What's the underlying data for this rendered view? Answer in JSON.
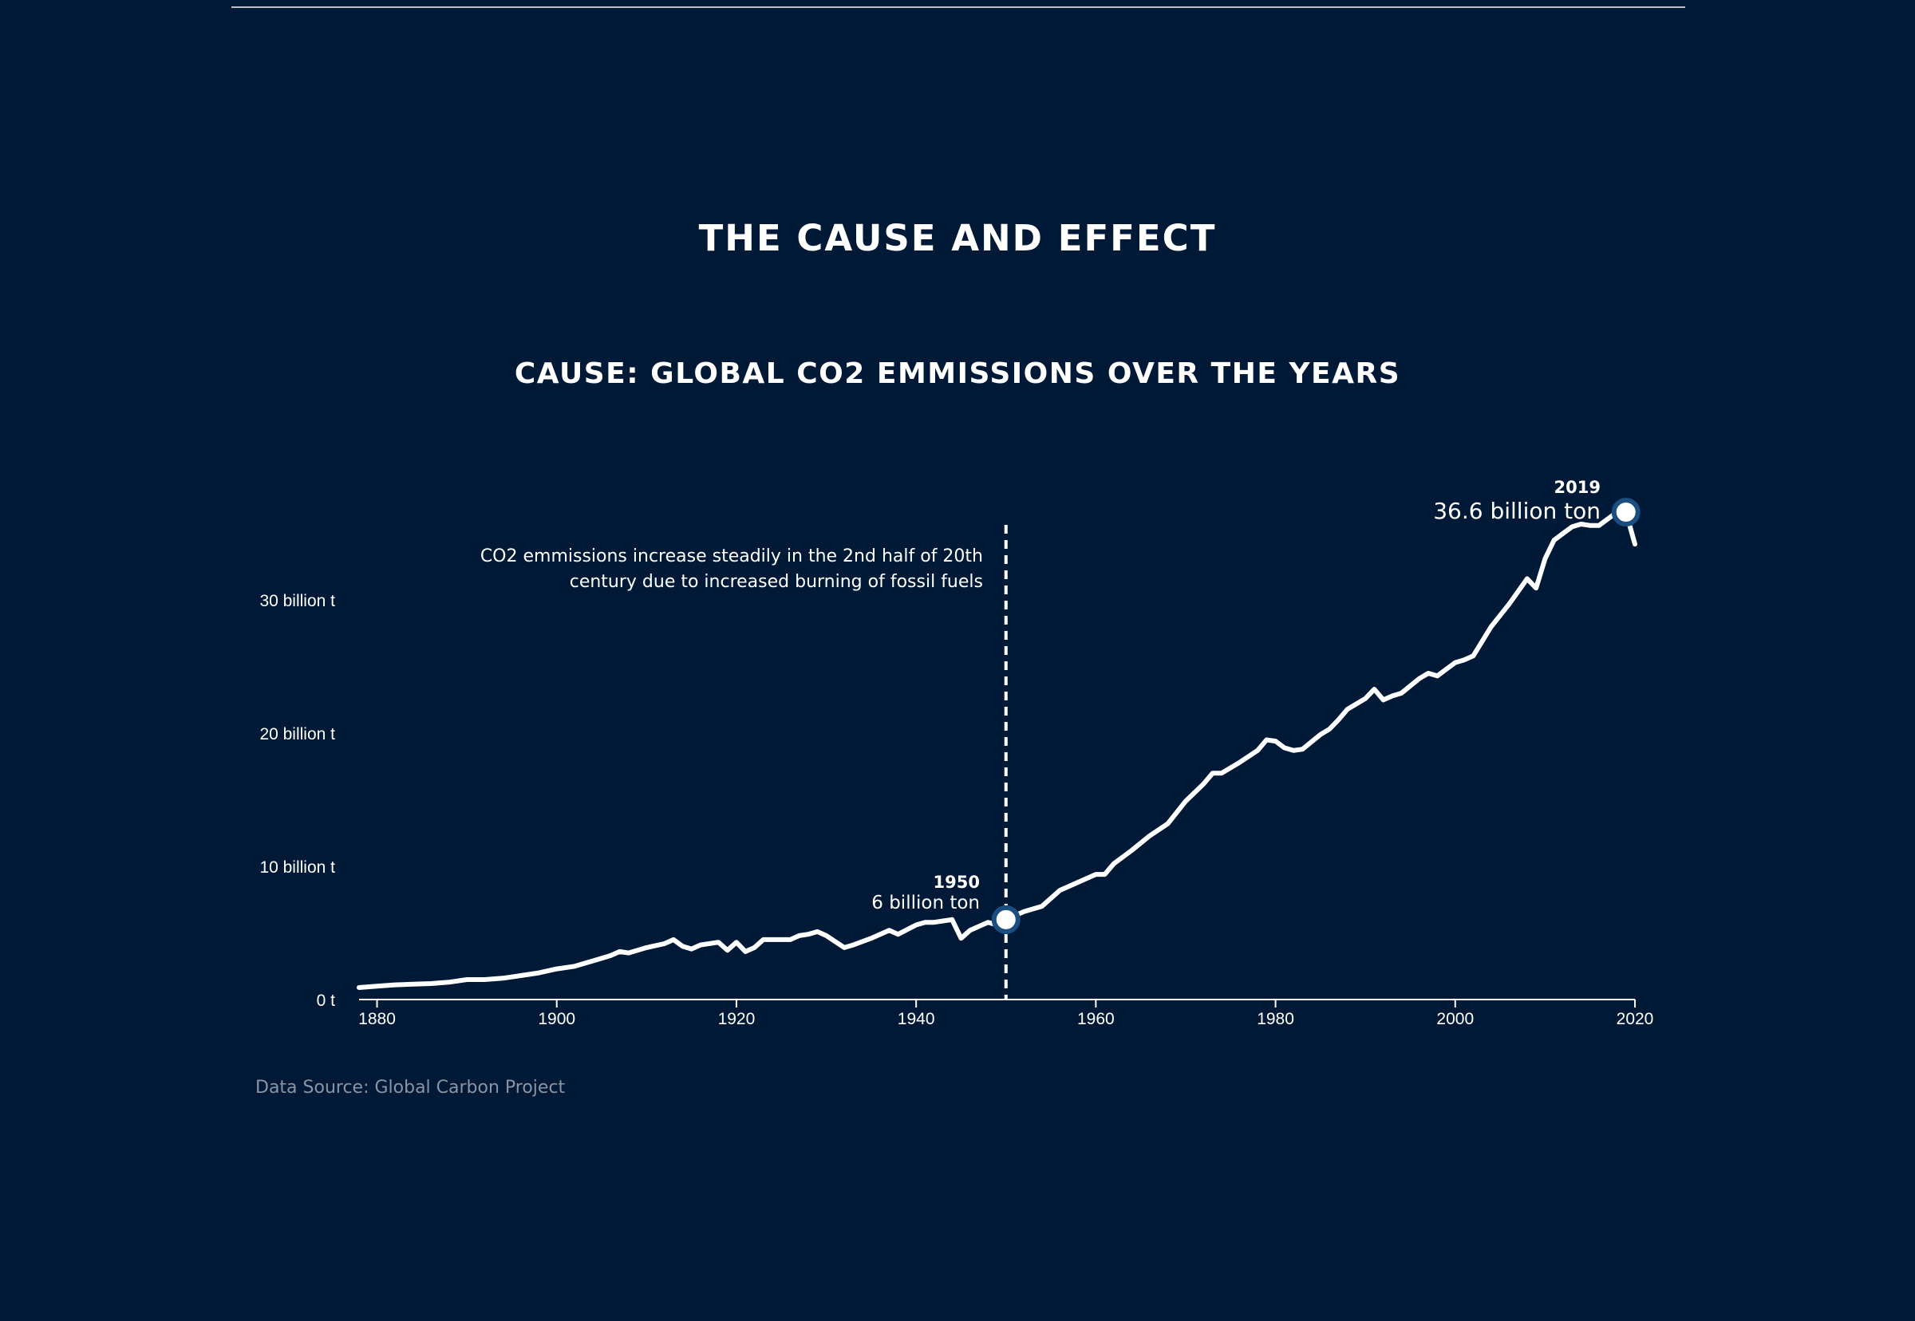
{
  "page": {
    "section_title": "THE CAUSE AND EFFECT",
    "source": "Data Source: Global Carbon Project"
  },
  "colors": {
    "background": "#001936",
    "line": "#ffffff",
    "marker_stroke": "#1a4d80",
    "source_text": "#8a94a3"
  },
  "chart_data": {
    "type": "line",
    "title": "CAUSE: GLOBAL CO2 EMMISSIONS OVER THE YEARS",
    "xlabel": "",
    "ylabel": "",
    "xlim": [
      1878,
      2020
    ],
    "ylim": [
      0,
      36.6
    ],
    "grid": false,
    "x_ticks": [
      1880,
      1900,
      1920,
      1940,
      1960,
      1980,
      2000,
      2020
    ],
    "y_ticks": [
      {
        "value": 0,
        "label": "0 t"
      },
      {
        "value": 10,
        "label": "10 billion t"
      },
      {
        "value": 20,
        "label": "20 billion t"
      },
      {
        "value": 30,
        "label": "30 billion t"
      }
    ],
    "series": [
      {
        "x": [
          1878,
          1880,
          1882,
          1884,
          1886,
          1888,
          1890,
          1892,
          1894,
          1896,
          1898,
          1900,
          1902,
          1904,
          1906,
          1907,
          1908,
          1910,
          1912,
          1913,
          1914,
          1915,
          1916,
          1918,
          1919,
          1920,
          1921,
          1922,
          1923,
          1925,
          1926,
          1927,
          1928,
          1929,
          1930,
          1932,
          1933,
          1935,
          1937,
          1938,
          1940,
          1941,
          1942,
          1943,
          1944,
          1945,
          1946,
          1948,
          1949,
          1950,
          1952,
          1954,
          1956,
          1958,
          1960,
          1961,
          1962,
          1964,
          1966,
          1968,
          1970,
          1972,
          1973,
          1974,
          1976,
          1978,
          1979,
          1980,
          1981,
          1982,
          1983,
          1985,
          1986,
          1987,
          1988,
          1990,
          1991,
          1992,
          1993,
          1994,
          1996,
          1997,
          1998,
          1999,
          2000,
          2001,
          2002,
          2004,
          2006,
          2008,
          2009,
          2010,
          2011,
          2012,
          2013,
          2014,
          2015,
          2016,
          2018,
          2019,
          2020
        ],
        "values": [
          0.9,
          1.0,
          1.1,
          1.15,
          1.2,
          1.3,
          1.5,
          1.5,
          1.6,
          1.8,
          2.0,
          2.3,
          2.5,
          2.9,
          3.3,
          3.6,
          3.5,
          3.9,
          4.2,
          4.5,
          4.0,
          3.8,
          4.1,
          4.3,
          3.7,
          4.3,
          3.6,
          3.9,
          4.5,
          4.5,
          4.5,
          4.8,
          4.9,
          5.1,
          4.8,
          3.9,
          4.1,
          4.6,
          5.2,
          4.9,
          5.6,
          5.8,
          5.8,
          5.9,
          6.0,
          4.6,
          5.2,
          5.8,
          5.6,
          6.0,
          6.6,
          7.0,
          8.2,
          8.8,
          9.4,
          9.4,
          10.2,
          11.2,
          12.3,
          13.2,
          14.9,
          16.2,
          17.0,
          17.0,
          17.8,
          18.7,
          19.5,
          19.4,
          18.9,
          18.7,
          18.8,
          19.9,
          20.3,
          21.0,
          21.8,
          22.6,
          23.3,
          22.5,
          22.8,
          23.0,
          24.1,
          24.5,
          24.3,
          24.8,
          25.3,
          25.5,
          25.8,
          28.0,
          29.7,
          31.6,
          30.9,
          33.1,
          34.5,
          35.0,
          35.5,
          35.7,
          35.6,
          35.6,
          36.6,
          36.6,
          34.2
        ]
      }
    ],
    "reference_line": {
      "x": 1950
    },
    "annotations": [
      {
        "line1": "CO2 emmissions increase steadily in the 2nd half of  20th",
        "line2": "century due to increased burning of fossil fuels"
      }
    ],
    "callouts": [
      {
        "x": 1950,
        "y": 6,
        "year_label": "1950",
        "value_label": "6 billion ton"
      },
      {
        "x": 2019,
        "y": 36.6,
        "year_label": "2019",
        "value_label": "36.6 billion ton"
      }
    ]
  }
}
